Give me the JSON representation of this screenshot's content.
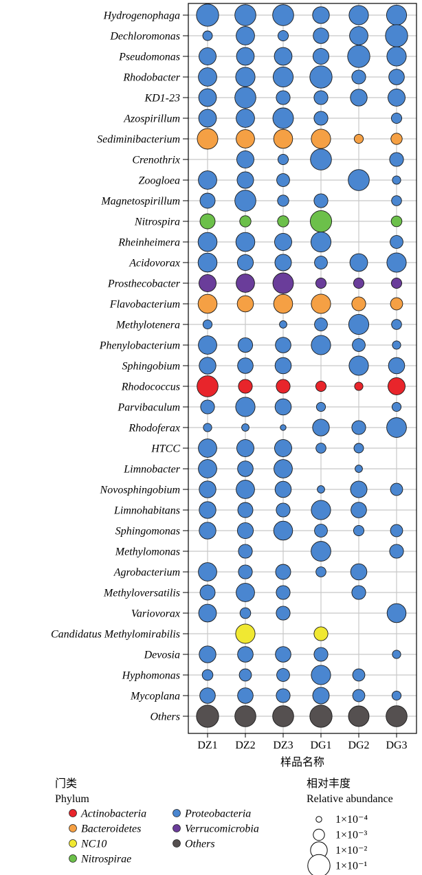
{
  "chart_data": {
    "type": "bubble",
    "title": "",
    "xlabel": "样品名称",
    "ylabel": "",
    "samples": [
      "DZ1",
      "DZ2",
      "DZ3",
      "DG1",
      "DG2",
      "DG3"
    ],
    "phylum_colors": {
      "Actinobacteria": "#e8252b",
      "Bacteroidetes": "#f5a044",
      "NC10": "#f0e832",
      "Nitrospirae": "#6cc04a",
      "Proteobacteria": "#4a86d0",
      "Verrucomicrobia": "#6a3d9a",
      "Others": "#555050"
    },
    "genera": [
      {
        "name": "Hydrogenophaga",
        "phylum": "Proteobacteria",
        "abundance": [
          0.1,
          0.06,
          0.06,
          0.01,
          0.03,
          0.04
        ]
      },
      {
        "name": "Dechloromonas",
        "phylum": "Proteobacteria",
        "abundance": [
          0.0005,
          0.02,
          0.0007,
          0.006,
          0.02,
          0.1
        ]
      },
      {
        "name": "Pseudomonas",
        "phylum": "Proteobacteria",
        "abundance": [
          0.012,
          0.015,
          0.015,
          0.007,
          0.1,
          0.03
        ]
      },
      {
        "name": "Rhodobacter",
        "phylum": "Proteobacteria",
        "abundance": [
          0.02,
          0.03,
          0.04,
          0.1,
          0.003,
          0.006
        ]
      },
      {
        "name": "KD1-23",
        "phylum": "Proteobacteria",
        "abundance": [
          0.015,
          0.06,
          0.003,
          0.003,
          0.01,
          0.012
        ]
      },
      {
        "name": "Azospirillum",
        "phylum": "Proteobacteria",
        "abundance": [
          0.015,
          0.02,
          0.05,
          0.003,
          null,
          0.0007
        ]
      },
      {
        "name": "Sediminibacterium",
        "phylum": "Bacteroidetes",
        "abundance": [
          0.05,
          0.02,
          0.025,
          0.03,
          0.0004,
          0.001
        ]
      },
      {
        "name": "Crenothrix",
        "phylum": "Proteobacteria",
        "abundance": [
          null,
          0.012,
          0.0007,
          0.06,
          null,
          0.003
        ]
      },
      {
        "name": "Zoogloea",
        "phylum": "Proteobacteria",
        "abundance": [
          0.02,
          0.009,
          0.002,
          null,
          0.06,
          0.0003
        ]
      },
      {
        "name": "Magnetospirillum",
        "phylum": "Proteobacteria",
        "abundance": [
          0.005,
          0.06,
          0.001,
          0.003,
          null,
          0.0006
        ]
      },
      {
        "name": "Nitrospira",
        "phylum": "Nitrospirae",
        "abundance": [
          0.005,
          0.001,
          0.001,
          0.07,
          null,
          0.0008
        ]
      },
      {
        "name": "Rheinheimera",
        "phylum": "Proteobacteria",
        "abundance": [
          0.025,
          0.025,
          0.012,
          0.04,
          null,
          0.002
        ]
      },
      {
        "name": "Acidovorax",
        "phylum": "Proteobacteria",
        "abundance": [
          0.025,
          0.007,
          0.009,
          0.002,
          0.015,
          0.03
        ]
      },
      {
        "name": "Prosthecobacter",
        "phylum": "Verrucomicrobia",
        "abundance": [
          0.012,
          0.02,
          0.05,
          0.0007,
          0.0007,
          0.0007
        ]
      },
      {
        "name": "Flavobacterium",
        "phylum": "Bacteroidetes",
        "abundance": [
          0.025,
          0.008,
          0.025,
          0.03,
          0.003,
          0.0015
        ]
      },
      {
        "name": "Methylotenera",
        "phylum": "Proteobacteria",
        "abundance": [
          0.0004,
          null,
          0.0002,
          0.002,
          0.04,
          0.0006
        ]
      },
      {
        "name": "Phenylobacterium",
        "phylum": "Proteobacteria",
        "abundance": [
          0.02,
          0.004,
          0.006,
          0.03,
          0.002,
          0.0003
        ]
      },
      {
        "name": "Sphingobium",
        "phylum": "Proteobacteria",
        "abundance": [
          0.01,
          0.006,
          0.008,
          null,
          0.03,
          0.008
        ]
      },
      {
        "name": "Rhodococcus",
        "phylum": "Actinobacteria",
        "abundance": [
          0.06,
          0.003,
          0.003,
          0.0007,
          0.0003,
          0.012
        ]
      },
      {
        "name": "Parvibaculum",
        "phylum": "Proteobacteria",
        "abundance": [
          0.003,
          0.03,
          0.008,
          0.0004,
          null,
          0.0004
        ]
      },
      {
        "name": "Rhodoferax",
        "phylum": "Proteobacteria",
        "abundance": [
          0.0003,
          0.0002,
          0.0001,
          0.01,
          0.003,
          0.035
        ]
      },
      {
        "name": "HTCC",
        "phylum": "Proteobacteria",
        "abundance": [
          0.02,
          0.012,
          0.012,
          0.0006,
          0.0005,
          null
        ]
      },
      {
        "name": "Limnobacter",
        "phylum": "Proteobacteria",
        "abundance": [
          0.02,
          0.006,
          0.02,
          null,
          0.0002,
          null
        ]
      },
      {
        "name": "Novosphingobium",
        "phylum": "Proteobacteria",
        "abundance": [
          0.01,
          0.02,
          0.008,
          0.0002,
          0.009,
          0.0015
        ]
      },
      {
        "name": "Limnohabitans",
        "phylum": "Proteobacteria",
        "abundance": [
          0.01,
          0.005,
          0.003,
          0.03,
          0.006,
          null
        ]
      },
      {
        "name": "Sphingomonas",
        "phylum": "Proteobacteria",
        "abundance": [
          0.01,
          0.007,
          0.025,
          0.002,
          0.0007,
          0.0015
        ]
      },
      {
        "name": "Methylomonas",
        "phylum": "Proteobacteria",
        "abundance": [
          null,
          0.003,
          null,
          0.035,
          null,
          0.003
        ]
      },
      {
        "name": "Agrobacterium",
        "phylum": "Proteobacteria",
        "abundance": [
          0.02,
          0.003,
          0.005,
          0.0006,
          0.008,
          null
        ]
      },
      {
        "name": "Methyloversatilis",
        "phylum": "Proteobacteria",
        "abundance": [
          0.005,
          0.02,
          0.003,
          null,
          0.003,
          null
        ]
      },
      {
        "name": "Variovorax",
        "phylum": "Proteobacteria",
        "abundance": [
          0.015,
          0.0008,
          0.003,
          null,
          null,
          0.025
        ]
      },
      {
        "name": "Candidatus Methylomirabilis",
        "phylum": "NC10",
        "abundance": [
          null,
          0.03,
          null,
          0.003,
          null,
          null
        ]
      },
      {
        "name": "Devosia",
        "phylum": "Proteobacteria",
        "abundance": [
          0.01,
          0.006,
          0.006,
          0.003,
          null,
          0.0003
        ]
      },
      {
        "name": "Hyphomonas",
        "phylum": "Proteobacteria",
        "abundance": [
          0.0008,
          0.0015,
          0.002,
          0.03,
          0.0015,
          null
        ]
      },
      {
        "name": "Mycoplana",
        "phylum": "Proteobacteria",
        "abundance": [
          0.006,
          0.006,
          0.003,
          0.009,
          0.0015,
          0.0004
        ]
      },
      {
        "name": "Others",
        "phylum": "Others",
        "abundance": [
          0.1,
          0.06,
          0.06,
          0.1,
          0.05,
          0.06
        ]
      }
    ],
    "legend_phylum": {
      "title_cn": "门类",
      "title_en": "Phylum",
      "entries": [
        "Actinobacteria",
        "Proteobacteria",
        "Bacteroidetes",
        "Verrucomicrobia",
        "NC10",
        "Others",
        "Nitrospirae"
      ]
    },
    "legend_size": {
      "title_cn": "相对丰度",
      "title_en": "Relative abundance",
      "entries": [
        {
          "label": "1×10⁻⁴",
          "value": 0.0001
        },
        {
          "label": "1×10⁻³",
          "value": 0.001
        },
        {
          "label": "1×10⁻²",
          "value": 0.01
        },
        {
          "label": "1×10⁻¹",
          "value": 0.1
        }
      ]
    },
    "grid": true
  }
}
